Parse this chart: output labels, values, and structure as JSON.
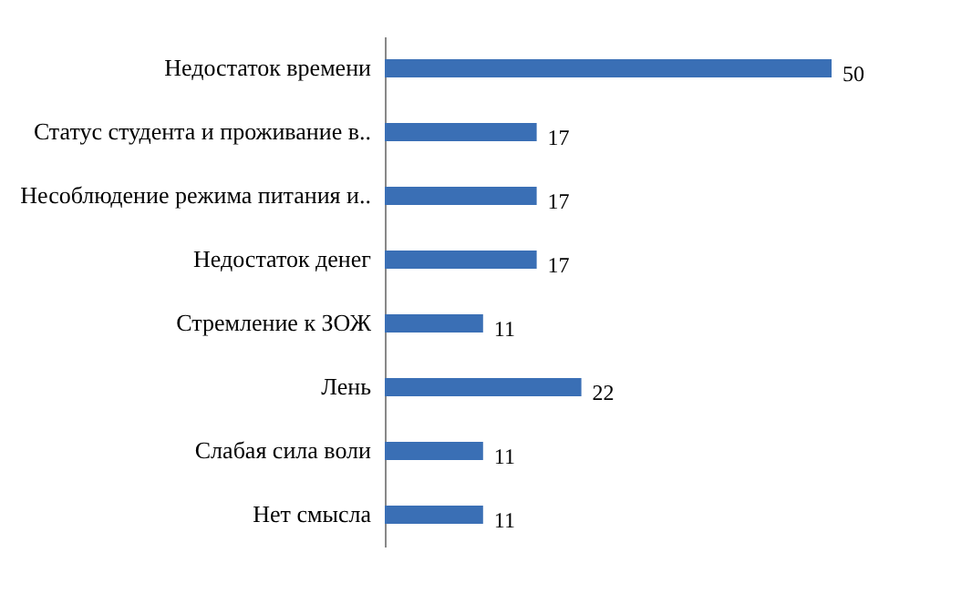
{
  "chart_data": {
    "type": "bar",
    "orientation": "horizontal",
    "categories": [
      "Недостаток времени",
      "Статус студента и проживание в..",
      "Несоблюдение режима питания и..",
      "Недостаток денег",
      "Стремление к ЗОЖ",
      "Лень",
      "Слабая сила воли",
      "Нет смысла"
    ],
    "values": [
      50,
      17,
      17,
      17,
      11,
      22,
      11,
      11
    ],
    "color": "#3a6fb5",
    "data_labels": true
  }
}
